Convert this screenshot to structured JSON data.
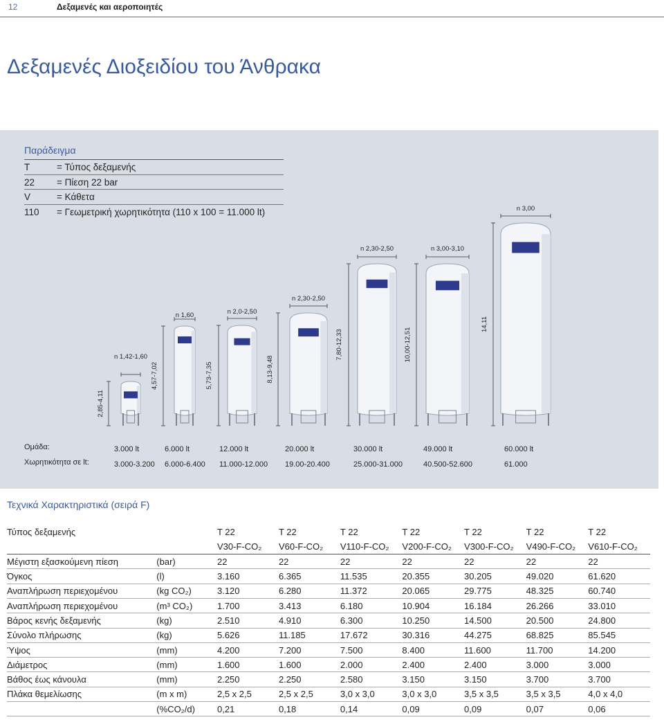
{
  "header": {
    "page_number": "12",
    "section_title": "Δεξαμενές και αεροποιητές"
  },
  "title": "Δεξαμενές Διοξειδίου του Άνθρακα",
  "example": {
    "title": "Παράδειγμα",
    "rows": [
      {
        "key": "T",
        "value": "= Τύπος δεξαμενής"
      },
      {
        "key": "22",
        "value": "= Πίεση 22 bar"
      },
      {
        "key": "V",
        "value": "= Κάθετα"
      },
      {
        "key": "110",
        "value": "= Γεωμετρική χωρητικότητα (110 x 100 = 11.000 lt)"
      }
    ]
  },
  "tanks": [
    {
      "diameter": "n 1,42-1,60",
      "height": "2,85-4,11",
      "group": "3.000 lt",
      "capacity": "3.000-3.200"
    },
    {
      "diameter": "n 1,60",
      "height": "4,57-7,02",
      "group": "6.000 lt",
      "capacity": "6.000-6.400"
    },
    {
      "diameter": "n 2,0-2,50",
      "height": "5,73-7,35",
      "group": "12.000 lt",
      "capacity": "11.000-12.000"
    },
    {
      "diameter": "n 2,30-2,50",
      "height": "8,13-9,48",
      "group": "20.000 lt",
      "capacity": "19.00-20.400"
    },
    {
      "diameter": "n 2,30-2,50",
      "height": "7,80-12,33",
      "group": "30.000 lt",
      "capacity": "25.000-31.000"
    },
    {
      "diameter": "n 3,00-3,10",
      "height": "10,00-12,51",
      "group": "49.000 lt",
      "capacity": "40.500-52.600"
    },
    {
      "diameter": "n 3,00",
      "height": "14,11",
      "group": "60.000 lt",
      "capacity": "61.000"
    }
  ],
  "labels": {
    "group": "Ομάδα:",
    "capacity": "Χωρητικότητα σε lt:"
  },
  "colors": {
    "accent": "#3a5aa0",
    "panel": "#d9dee6",
    "tank_fill": "#f3f5f8",
    "tank_badge": "#2e3a8c"
  },
  "specs": {
    "title": "Τεχνικά Χαρακτηριστικά (σειρά F)",
    "rows": [
      {
        "param": "Τύπος δεξαμενής",
        "unit": "",
        "values": [
          "T 22",
          "T 22",
          "T 22",
          "T 22",
          "T 22",
          "T 22",
          "T 22"
        ]
      },
      {
        "param": "",
        "unit": "",
        "values": [
          "V30-F-CO₂",
          "V60-F-CO₂",
          "V110-F-CO₂",
          "V200-F-CO₂",
          "V300-F-CO₂",
          "V490-F-CO₂",
          "V610-F-CO₂"
        ]
      },
      {
        "param": "Μέγιστη εξασκούμενη πίεση",
        "unit": "(bar)",
        "values": [
          "22",
          "22",
          "22",
          "22",
          "22",
          "22",
          "22"
        ]
      },
      {
        "param": "Όγκος",
        "unit": "(l)",
        "values": [
          "3.160",
          "6.365",
          "11.535",
          "20.355",
          "30.205",
          "49.020",
          "61.620"
        ]
      },
      {
        "param": "Αναπλήρωση περιεχομένου",
        "unit": "(kg CO₂)",
        "values": [
          "3.120",
          "6.280",
          "11.372",
          "20.065",
          "29.775",
          "48.325",
          "60.740"
        ]
      },
      {
        "param": "Αναπλήρωση περιεχομένου",
        "unit": "(m³ CO₂)",
        "values": [
          "1.700",
          "3.413",
          "6.180",
          "10.904",
          "16.184",
          "26.266",
          "33.010"
        ]
      },
      {
        "param": "Βάρος κενής δεξαμενής",
        "unit": "(kg)",
        "values": [
          "2.510",
          "4.910",
          "6.300",
          "10.250",
          "14.500",
          "20.500",
          "24.800"
        ]
      },
      {
        "param": "Σύνολο πλήρωσης",
        "unit": "(kg)",
        "values": [
          "5.626",
          "11.185",
          "17.672",
          "30.316",
          "44.275",
          "68.825",
          "85.545"
        ]
      },
      {
        "param": "Ύψος",
        "unit": "(mm)",
        "values": [
          "4.200",
          "7.200",
          "7.500",
          "8.400",
          "11.600",
          "11.700",
          "14.200"
        ]
      },
      {
        "param": "Διάμετρος",
        "unit": "(mm)",
        "values": [
          "1.600",
          "1.600",
          "2.000",
          "2.400",
          "2.400",
          "3.000",
          "3.000"
        ]
      },
      {
        "param": "Βάθος έως κάνουλα",
        "unit": "(mm)",
        "values": [
          "2.250",
          "2.250",
          "2.580",
          "3.150",
          "3.150",
          "3.700",
          "3.700"
        ]
      },
      {
        "param": "Πλάκα θεμελίωσης",
        "unit": "(m x m)",
        "values": [
          "2,5 x 2,5",
          "2,5 x 2,5",
          "3,0 x 3,0",
          "3,0 x 3,0",
          "3,5 x 3,5",
          "3,5 x 3,5",
          "4,0 x 4,0"
        ]
      },
      {
        "param": "",
        "unit": "(%CO₂/d)",
        "values": [
          "0,21",
          "0,18",
          "0,14",
          "0,09",
          "0,09",
          "0,07",
          "0,06"
        ]
      }
    ]
  }
}
